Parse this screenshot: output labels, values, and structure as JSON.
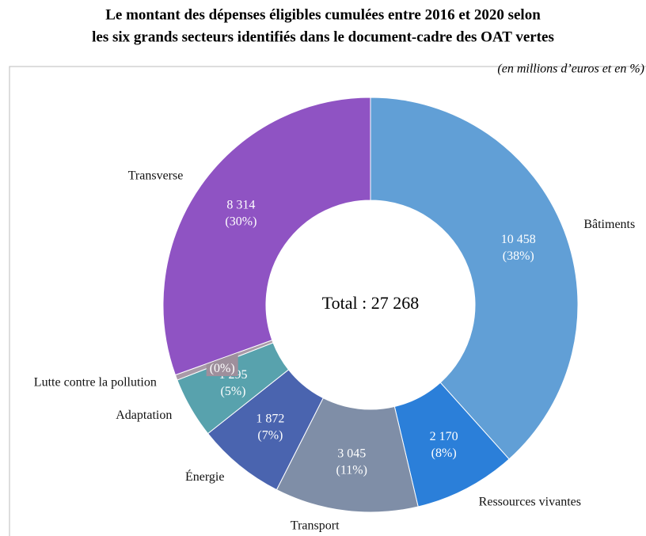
{
  "chart_data": {
    "type": "donut",
    "title": [
      "Le montant des dépenses éligibles cumulées entre 2016 et 2020 selon",
      "les six grands secteurs identifiés dans le document-cadre des OAT vertes"
    ],
    "subtitle": "(en millions d’euros et en %)",
    "center_label": "Total : 27 268",
    "categories": [
      "Bâtiments",
      "Ressources vivantes",
      "Transport",
      "Énergie",
      "Adaptation",
      "Lutte contre la pollution",
      "Transverse"
    ],
    "values": [
      10458,
      2170,
      3045,
      1872,
      1295,
      114,
      8314
    ],
    "value_labels": [
      "10 458",
      "2 170",
      "3 045",
      "1 872",
      "1 295",
      "114",
      "8 314"
    ],
    "percent_labels": [
      "(38%)",
      "(8%)",
      "(11%)",
      "(7%)",
      "(5%)",
      "(0%)",
      "(30%)"
    ],
    "colors": [
      "#619fd6",
      "#2b7fd9",
      "#7f8ea7",
      "#4a64af",
      "#58a2ad",
      "#a99aa8",
      "#8f53c3"
    ]
  }
}
